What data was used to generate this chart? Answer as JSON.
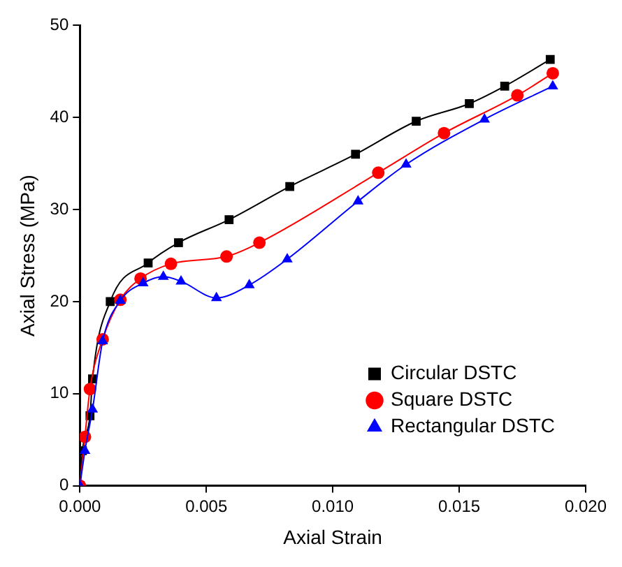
{
  "chart_data": {
    "type": "line",
    "xlabel": "Axial Strain",
    "ylabel": "Axial Stress (MPa)",
    "xlim": [
      0,
      0.02
    ],
    "xticks": [
      {
        "value": 0,
        "label": "0.000"
      },
      {
        "value": 0.005,
        "label": "0.005"
      },
      {
        "value": 0.01,
        "label": "0.010"
      },
      {
        "value": 0.015,
        "label": "0.015"
      },
      {
        "value": 0.02,
        "label": "0.020"
      }
    ],
    "ylim": [
      0,
      50
    ],
    "yticks": [
      0,
      10,
      20,
      30,
      40,
      50
    ],
    "grid": false,
    "legend": "bottom right",
    "series": [
      {
        "name": "Circular DSTC",
        "color": "#000000",
        "marker": "square",
        "x": [
          0,
          0.0001,
          0.0004,
          0.0005,
          0.0012,
          0.0027,
          0.0039,
          0.0059,
          0.0083,
          0.0109,
          0.0133,
          0.0154,
          0.0168,
          0.0186
        ],
        "values": [
          0,
          3.8,
          7.6,
          11.6,
          20,
          24.2,
          26.4,
          28.9,
          32.5,
          36,
          39.6,
          41.5,
          43.4,
          46.3
        ]
      },
      {
        "name": "Square DSTC",
        "color": "#ff0000",
        "marker": "circle",
        "x": [
          0,
          0.0002,
          0.0004,
          0.0009,
          0.0016,
          0.0024,
          0.0036,
          0.0058,
          0.0071,
          0.0118,
          0.0144,
          0.0173,
          0.0187
        ],
        "values": [
          0,
          5.3,
          10.5,
          15.9,
          20.2,
          22.5,
          24.1,
          24.9,
          26.4,
          34,
          38.3,
          42.4,
          44.8
        ]
      },
      {
        "name": "Rectangular DSTC",
        "color": "#0000ff",
        "marker": "triangle",
        "x": [
          0,
          0.0002,
          0.0005,
          0.0009,
          0.0016,
          0.0025,
          0.0033,
          0.004,
          0.0054,
          0.0067,
          0.0082,
          0.011,
          0.0129,
          0.016,
          0.0187
        ],
        "values": [
          0,
          3.8,
          8.3,
          15.7,
          20.1,
          22,
          22.7,
          22.2,
          20.4,
          21.8,
          24.6,
          30.9,
          34.9,
          39.8,
          43.4
        ]
      }
    ]
  }
}
